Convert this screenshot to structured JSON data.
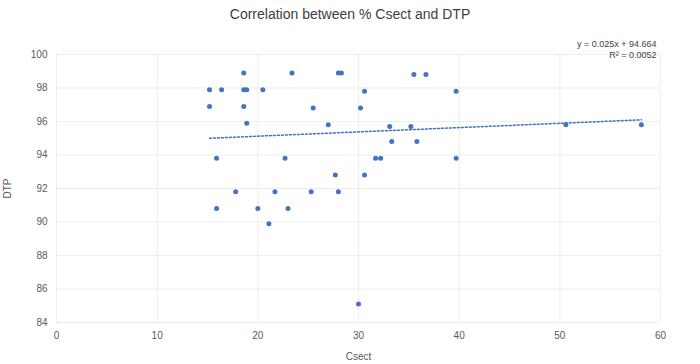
{
  "chart_data": {
    "type": "scatter",
    "title": "Correlation between % Csect and DTP",
    "x_label": "Csect",
    "y_label": "DTP",
    "color": "#4472c4",
    "marker": "circle",
    "grid": true,
    "xlim": [
      0,
      60
    ],
    "xticks": [
      0,
      10,
      20,
      30,
      40,
      50,
      60
    ],
    "ylim": [
      84,
      100
    ],
    "yticks": [
      84,
      86,
      88,
      90,
      92,
      94,
      96,
      98,
      100
    ],
    "x": [
      15.2,
      16.4,
      18.6,
      18.9,
      20.5,
      18.6,
      23.4,
      28.0,
      28.3,
      35.5,
      36.7,
      30.6,
      39.7,
      15.2,
      18.6,
      25.5,
      30.2,
      18.9,
      27.0,
      33.1,
      35.2,
      50.6,
      58.1,
      33.3,
      35.8,
      15.9,
      22.7,
      31.7,
      32.2,
      39.7,
      27.7,
      30.6,
      17.8,
      21.7,
      25.3,
      28.0,
      15.9,
      20.0,
      23.0,
      21.1,
      30.0
    ],
    "values": [
      97.9,
      97.9,
      97.9,
      97.9,
      97.9,
      98.9,
      98.9,
      98.9,
      98.9,
      98.8,
      98.8,
      97.8,
      97.8,
      96.9,
      96.9,
      96.8,
      96.8,
      95.9,
      95.8,
      95.7,
      95.7,
      95.8,
      95.8,
      94.8,
      94.8,
      93.8,
      93.8,
      93.8,
      93.8,
      93.8,
      92.8,
      92.8,
      91.8,
      91.8,
      91.8,
      91.8,
      90.8,
      90.8,
      90.8,
      89.9,
      85.1
    ],
    "trendline": {
      "equation": "y = 0.025x + 94.664",
      "r2": "R² = 0.0052",
      "x": [
        15.2,
        58.1
      ],
      "values": [
        95.0,
        96.1
      ],
      "color": "#4472c4",
      "line_style": "dotted"
    }
  }
}
